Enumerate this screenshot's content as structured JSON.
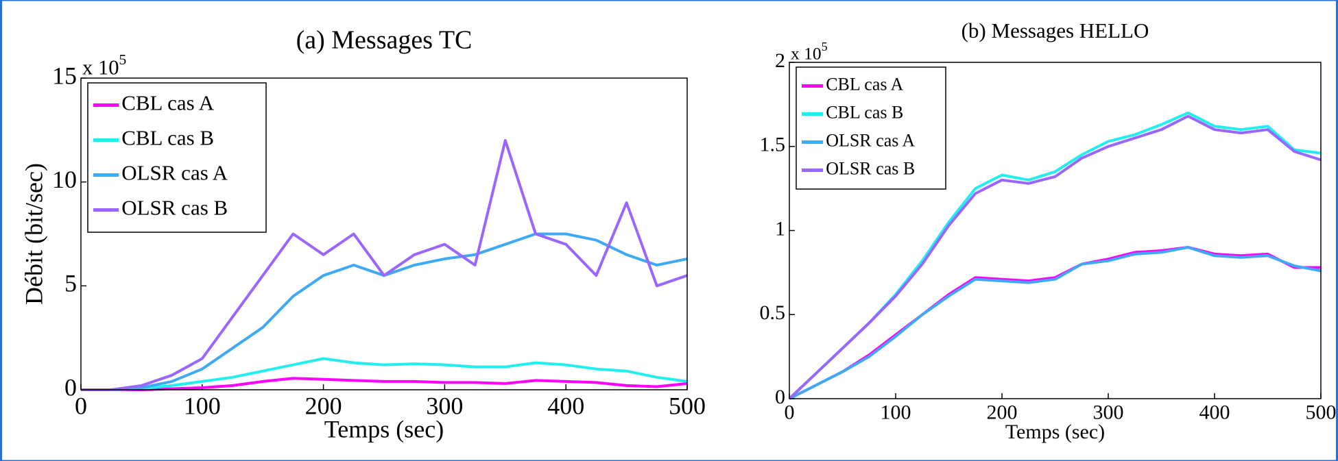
{
  "chart_data": [
    {
      "type": "line",
      "title": "(a) Messages TC",
      "xlabel": "Temps (sec)",
      "ylabel": "Débit (bit/sec)",
      "multiplier": "x 10",
      "multiplier_exponent": "5",
      "x": [
        0,
        25,
        50,
        75,
        100,
        125,
        150,
        175,
        200,
        225,
        250,
        275,
        300,
        325,
        350,
        375,
        400,
        425,
        450,
        475,
        500
      ],
      "xlim": [
        0,
        500
      ],
      "xticks": [
        0,
        100,
        200,
        300,
        400,
        500
      ],
      "ylim": [
        0,
        15
      ],
      "yticks": [
        0,
        5,
        10,
        15
      ],
      "legend": "upper-left",
      "series": [
        {
          "name": "CBL cas A",
          "color": "#ff00ff",
          "values": [
            0,
            0,
            0,
            0.05,
            0.1,
            0.2,
            0.4,
            0.55,
            0.5,
            0.45,
            0.4,
            0.4,
            0.35,
            0.35,
            0.3,
            0.45,
            0.4,
            0.35,
            0.2,
            0.15,
            0.3
          ]
        },
        {
          "name": "CBL cas B",
          "color": "#22eeee",
          "values": [
            0,
            0,
            0.05,
            0.2,
            0.4,
            0.6,
            0.9,
            1.2,
            1.5,
            1.3,
            1.2,
            1.25,
            1.2,
            1.1,
            1.1,
            1.3,
            1.2,
            1.0,
            0.9,
            0.6,
            0.4
          ]
        },
        {
          "name": "OLSR cas A",
          "color": "#3fa9f5",
          "values": [
            0,
            0,
            0.1,
            0.4,
            1.0,
            2.0,
            3.0,
            4.5,
            5.5,
            6.0,
            5.5,
            6.0,
            6.3,
            6.5,
            7.0,
            7.5,
            7.5,
            7.2,
            6.5,
            6.0,
            6.3
          ]
        },
        {
          "name": "OLSR cas B",
          "color": "#9966ff",
          "values": [
            0,
            0,
            0.2,
            0.7,
            1.5,
            3.5,
            5.5,
            7.5,
            6.5,
            7.5,
            5.5,
            6.5,
            7,
            6,
            12,
            7.5,
            7,
            5.5,
            9,
            5,
            5.5
          ]
        }
      ]
    },
    {
      "type": "line",
      "title": "(b) Messages HELLO",
      "xlabel": "Temps (sec)",
      "multiplier": "x 10",
      "multiplier_exponent": "5",
      "x": [
        0,
        25,
        50,
        75,
        100,
        125,
        150,
        175,
        200,
        225,
        250,
        275,
        300,
        325,
        350,
        375,
        400,
        425,
        450,
        475,
        500
      ],
      "xlim": [
        0,
        500
      ],
      "xticks": [
        0,
        100,
        200,
        300,
        400,
        500
      ],
      "ylim": [
        0,
        2
      ],
      "yticks": [
        0,
        0.5,
        1,
        1.5,
        2
      ],
      "legend": "upper-left",
      "series": [
        {
          "name": "CBL cas A",
          "color": "#ff00ff",
          "values": [
            0,
            0.08,
            0.16,
            0.26,
            0.38,
            0.5,
            0.62,
            0.72,
            0.71,
            0.7,
            0.72,
            0.8,
            0.83,
            0.87,
            0.88,
            0.9,
            0.86,
            0.85,
            0.86,
            0.78,
            0.78
          ]
        },
        {
          "name": "CBL cas B",
          "color": "#22eeee",
          "values": [
            0,
            0.15,
            0.3,
            0.45,
            0.62,
            0.82,
            1.05,
            1.25,
            1.33,
            1.3,
            1.35,
            1.45,
            1.53,
            1.57,
            1.63,
            1.7,
            1.62,
            1.6,
            1.62,
            1.48,
            1.46
          ]
        },
        {
          "name": "OLSR cas A",
          "color": "#3fa9f5",
          "values": [
            0,
            0.08,
            0.16,
            0.25,
            0.37,
            0.5,
            0.61,
            0.71,
            0.7,
            0.69,
            0.71,
            0.8,
            0.82,
            0.86,
            0.87,
            0.9,
            0.85,
            0.84,
            0.85,
            0.79,
            0.76
          ]
        },
        {
          "name": "OLSR cas B",
          "color": "#9966ff",
          "values": [
            0,
            0.15,
            0.3,
            0.45,
            0.61,
            0.8,
            1.03,
            1.22,
            1.3,
            1.28,
            1.32,
            1.43,
            1.5,
            1.55,
            1.6,
            1.68,
            1.6,
            1.58,
            1.6,
            1.47,
            1.42
          ]
        }
      ]
    }
  ]
}
